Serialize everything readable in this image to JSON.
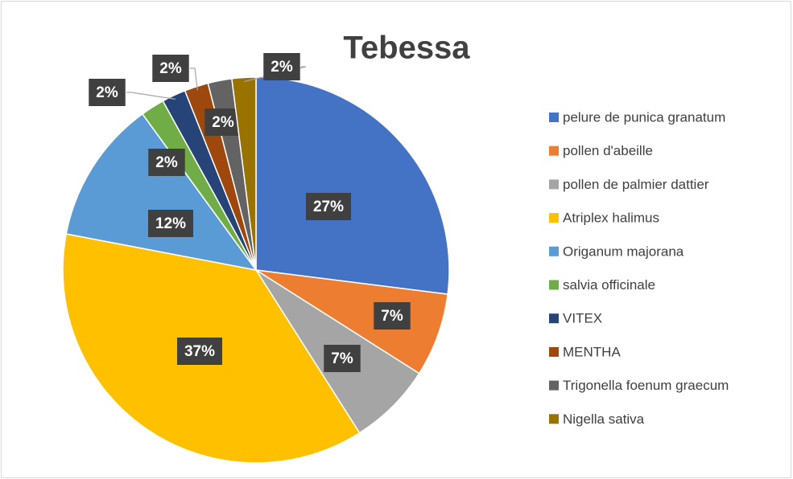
{
  "chart_data": {
    "type": "pie",
    "title": "Tebessa",
    "categories": [
      "pelure de punica granatum",
      "pollen d'abeille",
      "pollen de palmier dattier",
      "Atriplex halimus",
      "Origanum majorana",
      "salvia officinale",
      "VITEX",
      "MENTHA",
      "Trigonella foenum graecum",
      "Nigella sativa"
    ],
    "values": [
      27,
      7,
      7,
      37,
      12,
      2,
      2,
      2,
      2,
      2
    ],
    "value_labels": [
      "27%",
      "7%",
      "7%",
      "37%",
      "12%",
      "2%",
      "2%",
      "2%",
      "2%",
      "2%"
    ],
    "colors": [
      "#4472c4",
      "#ed7d31",
      "#a5a5a5",
      "#ffc000",
      "#5b9bd5",
      "#70ad47",
      "#264478",
      "#9e480e",
      "#636363",
      "#997300"
    ],
    "legend": "right"
  }
}
